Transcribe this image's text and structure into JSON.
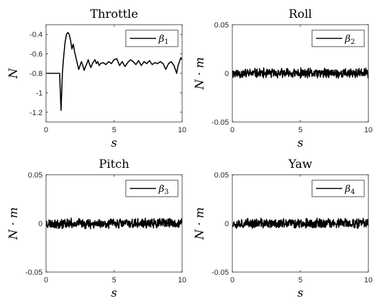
{
  "chart_data": [
    {
      "type": "line",
      "title": "Throttle",
      "xlabel": "s",
      "ylabel": "N",
      "xlim": [
        0,
        10
      ],
      "ylim": [
        -1.3,
        -0.3
      ],
      "xticks": [
        0,
        5,
        10
      ],
      "xtick_labels": [
        "0",
        "5",
        "10"
      ],
      "yticks": [
        -1.2,
        -1.0,
        -0.8,
        -0.6,
        -0.4
      ],
      "ytick_labels": [
        "-1.2",
        "-1",
        "-0.8",
        "-0.6",
        "-0.4"
      ],
      "legend": {
        "position": "top-right",
        "symbol": "β",
        "subscript": "1"
      },
      "grid": false,
      "series": [
        {
          "x": [
            0,
            0.5,
            1.0,
            1.05,
            1.1,
            1.15,
            1.2,
            1.3,
            1.4,
            1.5,
            1.6,
            1.7,
            1.8,
            1.9,
            2.0,
            2.1,
            2.2,
            2.3,
            2.4,
            2.5,
            2.6,
            2.7,
            2.8,
            2.9,
            3.0,
            3.1,
            3.2,
            3.3,
            3.4,
            3.5,
            3.6,
            3.7,
            3.8,
            3.9,
            4.0,
            4.2,
            4.4,
            4.6,
            4.8,
            5.0,
            5.2,
            5.4,
            5.6,
            5.8,
            6.0,
            6.2,
            6.4,
            6.6,
            6.8,
            7.0,
            7.2,
            7.4,
            7.6,
            7.8,
            8.0,
            8.2,
            8.4,
            8.6,
            8.8,
            9.0,
            9.2,
            9.4,
            9.5,
            9.6,
            9.7,
            9.8,
            9.9,
            10.0
          ],
          "values": [
            -0.8,
            -0.8,
            -0.8,
            -1.0,
            -1.18,
            -1.0,
            -0.8,
            -0.62,
            -0.48,
            -0.4,
            -0.38,
            -0.4,
            -0.46,
            -0.55,
            -0.5,
            -0.58,
            -0.64,
            -0.7,
            -0.76,
            -0.72,
            -0.68,
            -0.72,
            -0.77,
            -0.73,
            -0.7,
            -0.66,
            -0.71,
            -0.74,
            -0.7,
            -0.68,
            -0.66,
            -0.7,
            -0.68,
            -0.72,
            -0.7,
            -0.69,
            -0.71,
            -0.68,
            -0.7,
            -0.66,
            -0.65,
            -0.72,
            -0.68,
            -0.73,
            -0.69,
            -0.66,
            -0.68,
            -0.71,
            -0.67,
            -0.72,
            -0.68,
            -0.7,
            -0.67,
            -0.71,
            -0.69,
            -0.7,
            -0.68,
            -0.7,
            -0.76,
            -0.7,
            -0.68,
            -0.72,
            -0.76,
            -0.8,
            -0.72,
            -0.68,
            -0.64,
            -0.66
          ]
        }
      ]
    },
    {
      "type": "line",
      "title": "Roll",
      "xlabel": "s",
      "ylabel": "N · m",
      "xlim": [
        0,
        10
      ],
      "ylim": [
        -0.05,
        0.05
      ],
      "xticks": [
        0,
        5,
        10
      ],
      "xtick_labels": [
        "0",
        "5",
        "10"
      ],
      "yticks": [
        -0.05,
        0,
        0.05
      ],
      "ytick_labels": [
        "-0.05",
        "0",
        "0.05"
      ],
      "legend": {
        "position": "top-right",
        "symbol": "β",
        "subscript": "2"
      },
      "grid": false,
      "series": [
        {
          "noise": {
            "center": 0,
            "amplitude": 0.0045,
            "points": 500,
            "seed": 11
          }
        }
      ]
    },
    {
      "type": "line",
      "title": "Pitch",
      "xlabel": "s",
      "ylabel": "N · m",
      "xlim": [
        0,
        10
      ],
      "ylim": [
        -0.05,
        0.05
      ],
      "xticks": [
        0,
        5,
        10
      ],
      "xtick_labels": [
        "0",
        "5",
        "10"
      ],
      "yticks": [
        -0.05,
        0,
        0.05
      ],
      "ytick_labels": [
        "-0.05",
        "0",
        "0.05"
      ],
      "legend": {
        "position": "top-right",
        "symbol": "β",
        "subscript": "3"
      },
      "grid": false,
      "series": [
        {
          "noise": {
            "center": 0,
            "amplitude": 0.0045,
            "points": 500,
            "seed": 23
          }
        }
      ]
    },
    {
      "type": "line",
      "title": "Yaw",
      "xlabel": "s",
      "ylabel": "N · m",
      "xlim": [
        0,
        10
      ],
      "ylim": [
        -0.05,
        0.05
      ],
      "xticks": [
        0,
        5,
        10
      ],
      "xtick_labels": [
        "0",
        "5",
        "10"
      ],
      "yticks": [
        -0.05,
        0,
        0.05
      ],
      "ytick_labels": [
        "-0.05",
        "0",
        "0.05"
      ],
      "legend": {
        "position": "top-right",
        "symbol": "β",
        "subscript": "4"
      },
      "grid": false,
      "series": [
        {
          "noise": {
            "center": 0,
            "amplitude": 0.0045,
            "points": 500,
            "seed": 37
          }
        }
      ]
    }
  ]
}
